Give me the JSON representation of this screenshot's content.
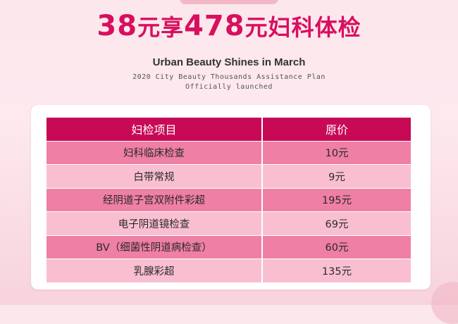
{
  "headline": {
    "price_now": "38",
    "text_mid": "元享",
    "price_orig": "478",
    "text_end": "元妇科体检"
  },
  "subtitle": "Urban Beauty Shines in March",
  "plan_lines": [
    "2020 City Beauty Thousands Assistance Plan",
    "Officially launched"
  ],
  "table": {
    "headers": [
      "妇检项目",
      "原价"
    ],
    "rows": [
      {
        "item": "妇科临床检查",
        "price": "10元"
      },
      {
        "item": "白带常规",
        "price": "9元"
      },
      {
        "item": "经阴道子宫双附件彩超",
        "price": "195元"
      },
      {
        "item": "电子阴道镜检查",
        "price": "69元"
      },
      {
        "item": "BV（细菌性阴道病检查）",
        "price": "60元"
      },
      {
        "item": "乳腺彩超",
        "price": "135元"
      }
    ]
  },
  "colors": {
    "accent": "#d80f5f",
    "header_bg": "#c80a56",
    "row_dark": "#ef7fa4",
    "row_light": "#f9bfd1"
  }
}
